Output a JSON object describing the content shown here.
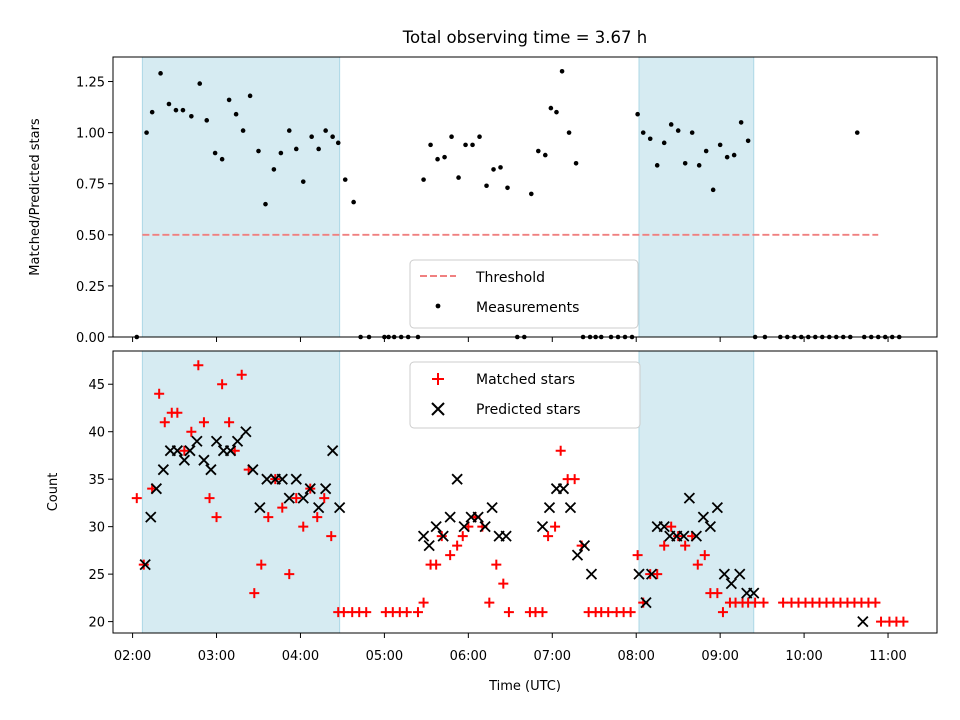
{
  "colors": {
    "shade": "#add8e6",
    "threshold": "#f08080",
    "matched": "#ff0000",
    "predicted": "#000000",
    "measurement": "#000000"
  },
  "chart_data": [
    {
      "type": "scatter",
      "title": "Total observing time = 3.67 h",
      "xlabel": "",
      "ylabel": "Matched/Predicted stars",
      "xlim": [
        "01:46",
        "11:35"
      ],
      "ylim": [
        0,
        1.37
      ],
      "yticks": [
        "0.00",
        "0.25",
        "0.50",
        "0.75",
        "1.00",
        "1.25"
      ],
      "shaded_x_ranges": [
        [
          "02:07",
          "04:28"
        ],
        [
          "08:02",
          "09:24"
        ]
      ],
      "legend": {
        "position": "bottom-center",
        "entries": [
          "Threshold",
          "Measurements"
        ]
      },
      "threshold": {
        "name": "Threshold",
        "value": 0.5,
        "x_range": [
          "02:07",
          "10:53"
        ]
      },
      "series": [
        {
          "name": "Measurements",
          "marker": "dot",
          "x": [
            "02:03",
            "02:10",
            "02:14",
            "02:20",
            "02:26",
            "02:31",
            "02:36",
            "02:42",
            "02:48",
            "02:53",
            "02:59",
            "03:04",
            "03:09",
            "03:14",
            "03:19",
            "03:24",
            "03:30",
            "03:35",
            "03:41",
            "03:46",
            "03:52",
            "03:57",
            "04:02",
            "04:08",
            "04:13",
            "04:18",
            "04:23",
            "04:27",
            "04:32",
            "04:38",
            "04:43",
            "04:49",
            "05:00",
            "05:03",
            "05:07",
            "05:12",
            "05:17",
            "05:24",
            "05:28",
            "05:33",
            "05:38",
            "05:43",
            "05:48",
            "05:53",
            "05:58",
            "06:03",
            "06:08",
            "06:13",
            "06:18",
            "06:23",
            "06:28",
            "06:35",
            "06:40",
            "06:45",
            "06:50",
            "06:55",
            "06:59",
            "07:03",
            "07:07",
            "07:12",
            "07:17",
            "07:22",
            "07:27",
            "07:31",
            "07:35",
            "07:42",
            "07:47",
            "07:52",
            "07:57",
            "08:01",
            "08:05",
            "08:10",
            "08:15",
            "08:20",
            "08:25",
            "08:30",
            "08:35",
            "08:40",
            "08:45",
            "08:50",
            "08:55",
            "09:00",
            "09:05",
            "09:10",
            "09:15",
            "09:20",
            "09:25",
            "09:32",
            "09:43",
            "09:48",
            "09:53",
            "09:58",
            "10:03",
            "10:08",
            "10:13",
            "10:18",
            "10:23",
            "10:28",
            "10:33",
            "10:38",
            "10:43",
            "10:48",
            "10:53",
            "10:58",
            "11:03",
            "11:08"
          ],
          "y": [
            0.0,
            1.0,
            1.1,
            1.29,
            1.14,
            1.11,
            1.11,
            1.08,
            1.24,
            1.06,
            0.9,
            0.87,
            1.16,
            1.09,
            1.01,
            1.18,
            0.91,
            0.65,
            0.82,
            0.9,
            1.01,
            0.92,
            0.76,
            0.98,
            0.92,
            1.01,
            0.98,
            0.95,
            0.77,
            0.66,
            0.0,
            0.0,
            0.0,
            0.0,
            0.0,
            0.0,
            0.0,
            0.0,
            0.77,
            0.94,
            0.87,
            0.88,
            0.98,
            0.78,
            0.94,
            0.94,
            0.98,
            0.74,
            0.82,
            0.83,
            0.73,
            0.0,
            0.0,
            0.7,
            0.91,
            0.89,
            1.12,
            1.1,
            1.3,
            1.0,
            0.85,
            0.0,
            0.0,
            0.0,
            0.0,
            0.0,
            0.0,
            0.0,
            0.0,
            1.09,
            1.0,
            0.97,
            0.84,
            0.95,
            1.04,
            1.01,
            0.85,
            1.0,
            0.84,
            0.91,
            0.72,
            0.94,
            0.88,
            0.89,
            1.05,
            0.96,
            0.0,
            0.0,
            0.0,
            0.0,
            0.0,
            0.0,
            0.0,
            0.0,
            0.0,
            0.0,
            0.0,
            0.0,
            0.0,
            1.0,
            0.0,
            0.0,
            0.0,
            0.0,
            0.0,
            0.0
          ]
        }
      ]
    },
    {
      "type": "scatter",
      "title": "",
      "xlabel": "Time (UTC)",
      "ylabel": "Count",
      "xlim": [
        "01:46",
        "11:35"
      ],
      "ylim": [
        18.8,
        48.5
      ],
      "yticks": [
        "20",
        "25",
        "30",
        "35",
        "40",
        "45"
      ],
      "xticks": [
        "02:00",
        "03:00",
        "04:00",
        "05:00",
        "06:00",
        "07:00",
        "08:00",
        "09:00",
        "10:00",
        "11:00"
      ],
      "shaded_x_ranges": [
        [
          "02:07",
          "04:28"
        ],
        [
          "08:02",
          "09:24"
        ]
      ],
      "legend": {
        "position": "top-center",
        "entries": [
          "Matched stars",
          "Predicted stars"
        ]
      },
      "series": [
        {
          "name": "Matched stars",
          "marker": "plus",
          "x": [
            "02:03",
            "02:08",
            "02:14",
            "02:19",
            "02:23",
            "02:28",
            "02:32",
            "02:37",
            "02:42",
            "02:47",
            "02:51",
            "02:55",
            "03:00",
            "03:04",
            "03:09",
            "03:13",
            "03:18",
            "03:23",
            "03:27",
            "03:32",
            "03:37",
            "03:42",
            "03:47",
            "03:52",
            "03:57",
            "04:02",
            "04:07",
            "04:12",
            "04:17",
            "04:22",
            "04:27",
            "04:31",
            "04:37",
            "04:42",
            "04:47",
            "05:01",
            "05:06",
            "05:11",
            "05:16",
            "05:24",
            "05:28",
            "05:33",
            "05:37",
            "05:41",
            "05:47",
            "05:52",
            "05:56",
            "06:00",
            "06:05",
            "06:10",
            "06:15",
            "06:20",
            "06:25",
            "06:29",
            "06:44",
            "06:48",
            "06:53",
            "06:57",
            "07:02",
            "07:06",
            "07:11",
            "07:16",
            "07:21",
            "07:26",
            "07:31",
            "07:35",
            "07:40",
            "07:46",
            "07:51",
            "07:56",
            "08:01",
            "08:05",
            "08:10",
            "08:15",
            "08:20",
            "08:25",
            "08:30",
            "08:35",
            "08:40",
            "08:44",
            "08:49",
            "08:53",
            "08:58",
            "09:02",
            "09:07",
            "09:11",
            "09:16",
            "09:20",
            "09:25",
            "09:31",
            "09:45",
            "09:51",
            "09:56",
            "10:01",
            "10:06",
            "10:11",
            "10:16",
            "10:21",
            "10:26",
            "10:31",
            "10:36",
            "10:41",
            "10:46",
            "10:51",
            "10:55",
            "11:01",
            "11:06",
            "11:11"
          ],
          "y": [
            33,
            26,
            34,
            44,
            41,
            42,
            42,
            38,
            40,
            47,
            41,
            33,
            31,
            45,
            41,
            38,
            46,
            36,
            23,
            26,
            31,
            35,
            32,
            25,
            33,
            30,
            34,
            31,
            33,
            29,
            21,
            21,
            21,
            21,
            21,
            21,
            21,
            21,
            21,
            21,
            22,
            26,
            26,
            29,
            27,
            28,
            29,
            30,
            31,
            30,
            22,
            26,
            24,
            21,
            21,
            21,
            21,
            29,
            30,
            38,
            35,
            35,
            28,
            21,
            21,
            21,
            21,
            21,
            21,
            21,
            27,
            22,
            25,
            25,
            28,
            30,
            29,
            28,
            29,
            26,
            27,
            23,
            23,
            21,
            22,
            22,
            22,
            22,
            22,
            22,
            22,
            22,
            22,
            22,
            22,
            22,
            22,
            22,
            22,
            22,
            22,
            22,
            22,
            22,
            20,
            20,
            20,
            20
          ]
        },
        {
          "name": "Predicted stars",
          "marker": "x",
          "x": [
            "02:09",
            "02:13",
            "02:17",
            "02:22",
            "02:27",
            "02:32",
            "02:37",
            "02:41",
            "02:46",
            "02:51",
            "02:56",
            "03:00",
            "03:05",
            "03:10",
            "03:15",
            "03:21",
            "03:26",
            "03:31",
            "03:36",
            "03:42",
            "03:47",
            "03:52",
            "03:57",
            "04:02",
            "04:07",
            "04:13",
            "04:18",
            "04:23",
            "04:28",
            "05:28",
            "05:32",
            "05:37",
            "05:42",
            "05:47",
            "05:52",
            "05:57",
            "06:02",
            "06:07",
            "06:12",
            "06:17",
            "06:22",
            "06:27",
            "06:53",
            "06:58",
            "07:03",
            "07:08",
            "07:13",
            "07:18",
            "07:23",
            "07:28",
            "08:02",
            "08:07",
            "08:11",
            "08:15",
            "08:20",
            "08:24",
            "08:29",
            "08:34",
            "08:38",
            "08:43",
            "08:48",
            "08:53",
            "08:58",
            "09:03",
            "09:08",
            "09:14",
            "09:19",
            "09:24",
            "10:42"
          ],
          "y": [
            26,
            31,
            34,
            36,
            38,
            38,
            37,
            38,
            39,
            37,
            36,
            39,
            38,
            38,
            39,
            40,
            36,
            32,
            35,
            35,
            35,
            33,
            35,
            33,
            34,
            32,
            34,
            38,
            32,
            29,
            28,
            30,
            29,
            31,
            35,
            30,
            31,
            31,
            30,
            32,
            29,
            29,
            30,
            32,
            34,
            34,
            32,
            27,
            28,
            25,
            25,
            22,
            25,
            30,
            30,
            29,
            29,
            29,
            33,
            29,
            31,
            30,
            32,
            25,
            24,
            25,
            23,
            23,
            20
          ]
        }
      ]
    }
  ]
}
